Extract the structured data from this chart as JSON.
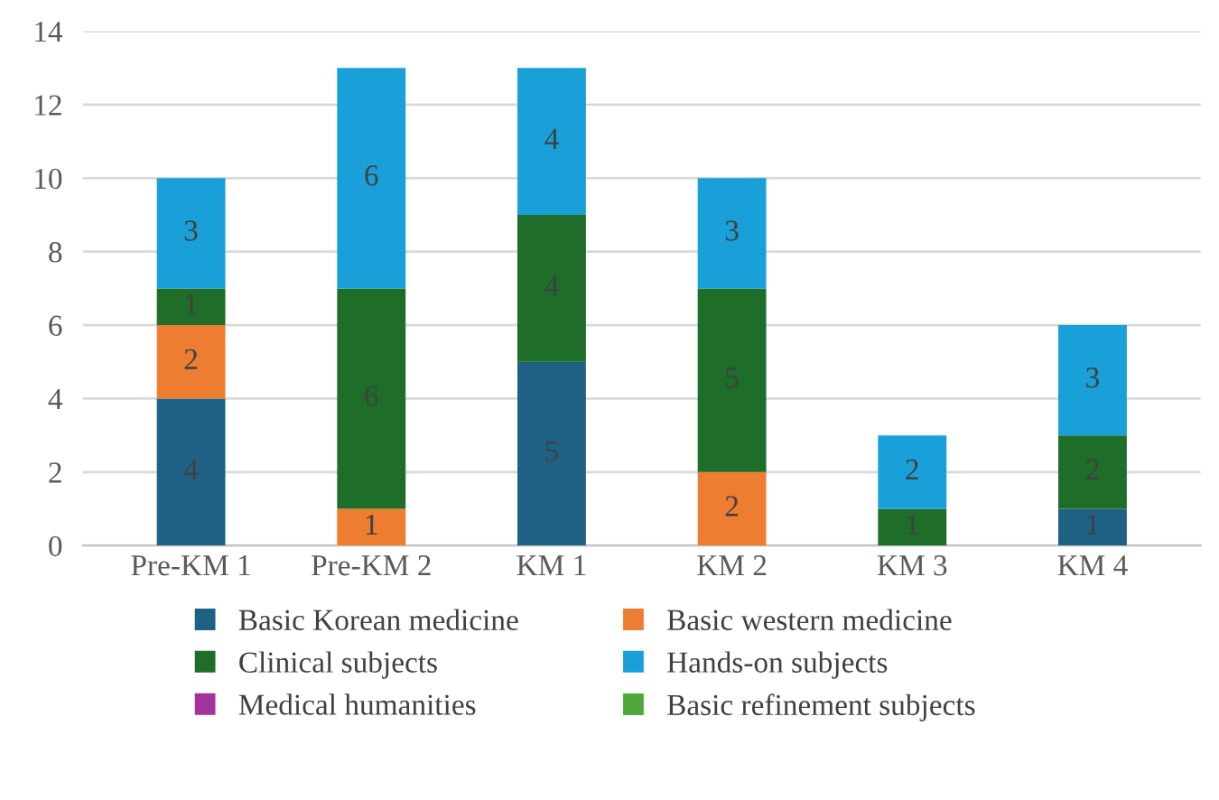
{
  "chart_data": {
    "type": "bar",
    "stacked": true,
    "categories": [
      "Pre-KM 1",
      "Pre-KM 2",
      "KM 1",
      "KM 2",
      "KM 3",
      "KM 4"
    ],
    "series": [
      {
        "name": "Basic Korean medicine",
        "color": "#1f6185",
        "values": [
          4,
          0,
          5,
          0,
          0,
          1
        ],
        "value_labels": [
          "4",
          null,
          "5",
          null,
          null,
          "1"
        ]
      },
      {
        "name": "Basic western medicine",
        "color": "#ed7d31",
        "values": [
          2,
          1,
          0,
          2,
          0,
          0
        ],
        "value_labels": [
          "2",
          "1",
          null,
          "2",
          null,
          null
        ]
      },
      {
        "name": "Clinical subjects",
        "color": "#1e6d28",
        "values": [
          1,
          6,
          4,
          5,
          1,
          2
        ],
        "value_labels": [
          "1",
          "6",
          "4",
          "5",
          "1",
          "2"
        ]
      },
      {
        "name": "Hands-on subjects",
        "color": "#19a0d8",
        "values": [
          3,
          6,
          4,
          3,
          2,
          3
        ],
        "value_labels": [
          "3",
          "6",
          "4",
          "3",
          "2",
          "3"
        ]
      },
      {
        "name": "Medical humanities",
        "color": "#a0349c",
        "values": [
          0,
          0,
          0,
          0,
          0,
          0
        ],
        "value_labels": [
          null,
          null,
          null,
          null,
          null,
          null
        ]
      },
      {
        "name": "Basic refinement subjects",
        "color": "#4fa83a",
        "values": [
          0,
          0,
          0,
          0,
          0,
          0
        ],
        "value_labels": [
          null,
          null,
          null,
          null,
          null,
          null
        ]
      }
    ],
    "ylim": [
      0,
      14
    ],
    "yticks": [
      0,
      2,
      4,
      6,
      8,
      10,
      12,
      14
    ],
    "grid": "y",
    "legend": "bottom"
  }
}
